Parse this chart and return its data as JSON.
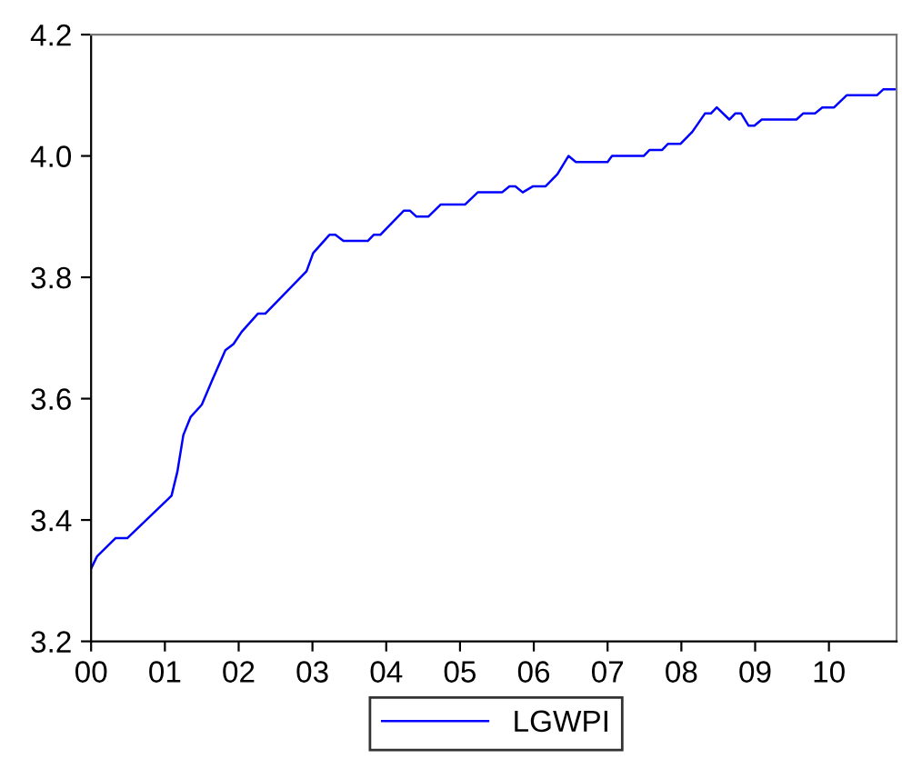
{
  "chart_data": {
    "type": "line",
    "x": [
      2000.0,
      2000.08,
      2000.33,
      2000.49,
      2001.09,
      2001.17,
      2001.25,
      2001.35,
      2001.5,
      2001.64,
      2001.82,
      2001.93,
      2002.04,
      2002.26,
      2002.36,
      2002.92,
      2003.01,
      2003.23,
      2003.31,
      2003.42,
      2003.75,
      2003.83,
      2003.92,
      2004.24,
      2004.32,
      2004.41,
      2004.57,
      2004.74,
      2005.07,
      2005.24,
      2005.57,
      2005.67,
      2005.75,
      2005.85,
      2005.99,
      2006.16,
      2006.32,
      2006.47,
      2006.57,
      2007.0,
      2007.06,
      2007.49,
      2007.57,
      2007.74,
      2007.82,
      2007.99,
      2008.15,
      2008.32,
      2008.4,
      2008.48,
      2008.65,
      2008.73,
      2008.81,
      2008.91,
      2008.99,
      2009.09,
      2009.56,
      2009.65,
      2009.81,
      2009.91,
      2010.07,
      2010.24,
      2010.65,
      2010.74,
      2010.91
    ],
    "series": [
      {
        "name": "LGWPI",
        "color": "#0000ff",
        "values": [
          3.32,
          3.34,
          3.37,
          3.37,
          3.44,
          3.48,
          3.54,
          3.57,
          3.59,
          3.63,
          3.68,
          3.69,
          3.71,
          3.74,
          3.74,
          3.81,
          3.84,
          3.87,
          3.87,
          3.86,
          3.86,
          3.87,
          3.87,
          3.91,
          3.91,
          3.9,
          3.9,
          3.92,
          3.92,
          3.94,
          3.94,
          3.95,
          3.95,
          3.94,
          3.95,
          3.95,
          3.97,
          4.0,
          3.99,
          3.99,
          4.0,
          4.0,
          4.01,
          4.01,
          4.02,
          4.02,
          4.04,
          4.07,
          4.07,
          4.08,
          4.06,
          4.07,
          4.07,
          4.05,
          4.05,
          4.06,
          4.06,
          4.07,
          4.07,
          4.08,
          4.08,
          4.1,
          4.1,
          4.11,
          4.11
        ]
      }
    ],
    "xlim": [
      2000,
      2010.917
    ],
    "xticks": [
      {
        "value": 2000,
        "label": "00"
      },
      {
        "value": 2001,
        "label": "01"
      },
      {
        "value": 2002,
        "label": "02"
      },
      {
        "value": 2003,
        "label": "03"
      },
      {
        "value": 2004,
        "label": "04"
      },
      {
        "value": 2005,
        "label": "05"
      },
      {
        "value": 2006,
        "label": "06"
      },
      {
        "value": 2007,
        "label": "07"
      },
      {
        "value": 2008,
        "label": "08"
      },
      {
        "value": 2009,
        "label": "09"
      },
      {
        "value": 2010,
        "label": "10"
      }
    ],
    "ylim": [
      3.2,
      4.2
    ],
    "yticks": [
      {
        "value": 3.2,
        "label": "3.2"
      },
      {
        "value": 3.4,
        "label": "3.4"
      },
      {
        "value": 3.6,
        "label": "3.6"
      },
      {
        "value": 3.8,
        "label": "3.8"
      },
      {
        "value": 4.0,
        "label": "4.0"
      },
      {
        "value": 4.2,
        "label": "4.2"
      }
    ],
    "legend": "bottom",
    "grid": false,
    "marker": "none",
    "line_style": "solid"
  }
}
